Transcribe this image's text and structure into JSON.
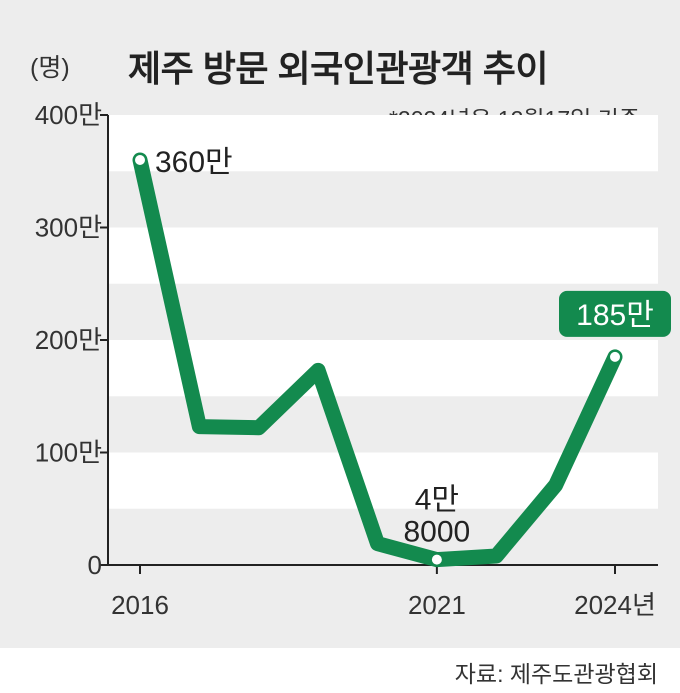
{
  "header": {
    "unit": "(명)",
    "title": "제주 방문 외국인관광객 추이",
    "note": "*2024년은 12월17일 기준"
  },
  "footer": {
    "source": "자료: 제주도관광협회"
  },
  "colors": {
    "line": "#138a4e",
    "highlight_box": "#138a4e",
    "band": "#ffffff",
    "panel": "#ededed"
  },
  "chart_data": {
    "type": "line",
    "x": [
      2016,
      2017,
      2018,
      2019,
      2020,
      2021,
      2022,
      2023,
      2024
    ],
    "series": [
      {
        "values": [
          3600000,
          1230000,
          1220000,
          1730000,
          190000,
          48000,
          80000,
          710000,
          1850000
        ]
      }
    ],
    "xticks": [
      {
        "x": 2016,
        "label": "2016"
      },
      {
        "x": 2021,
        "label": "2021"
      },
      {
        "x": 2024,
        "label": "2024년"
      }
    ],
    "yticks": [
      {
        "value": 0,
        "label": "0"
      },
      {
        "value": 1000000,
        "label": "100만"
      },
      {
        "value": 2000000,
        "label": "200만"
      },
      {
        "value": 3000000,
        "label": "300만"
      },
      {
        "value": 4000000,
        "label": "400만"
      }
    ],
    "ylim": [
      0,
      4000000
    ],
    "annotations": [
      {
        "x": 2016,
        "lines": [
          "360만"
        ]
      },
      {
        "x": 2021,
        "lines": [
          "4만",
          "8000"
        ]
      },
      {
        "x": 2024,
        "lines": [
          "185만"
        ],
        "highlight": true
      }
    ]
  }
}
